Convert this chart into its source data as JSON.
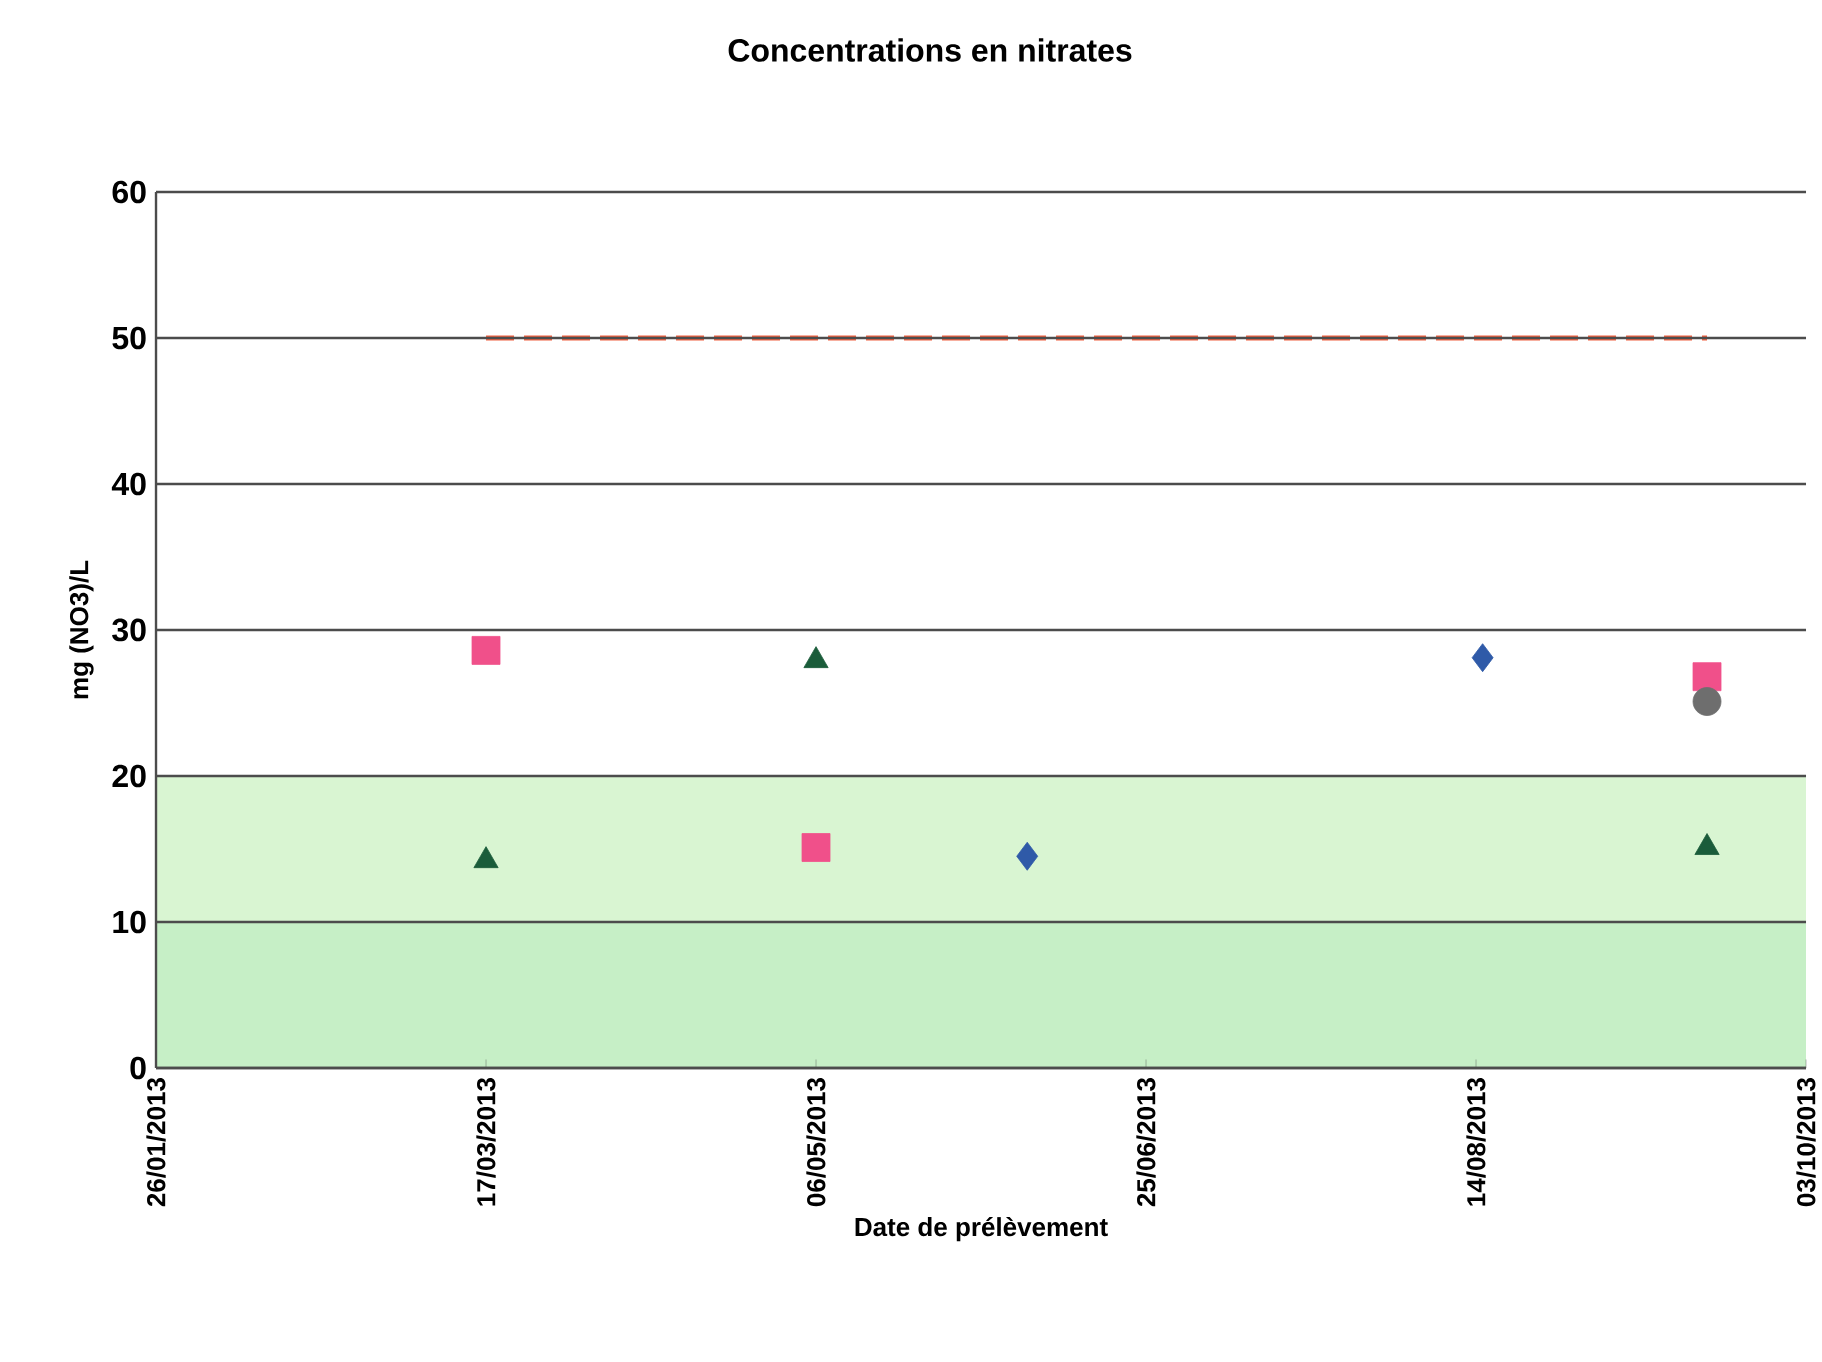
{
  "chart_data": {
    "type": "scatter",
    "title": "Concentrations en nitrates",
    "xlabel": "Date de prélèvement",
    "ylabel": "mg (NO3)/L",
    "xlim": [
      "2013-01-26",
      "2013-10-03"
    ],
    "xticks": [
      {
        "value": "2013-01-26",
        "label": "26/01/2013"
      },
      {
        "value": "2013-03-17",
        "label": "17/03/2013"
      },
      {
        "value": "2013-05-06",
        "label": "06/05/2013"
      },
      {
        "value": "2013-06-25",
        "label": "25/06/2013"
      },
      {
        "value": "2013-08-14",
        "label": "14/08/2013"
      },
      {
        "value": "2013-10-03",
        "label": "03/10/2013"
      }
    ],
    "ylim": [
      0,
      60
    ],
    "yticks": [
      0,
      10,
      20,
      30,
      40,
      50,
      60
    ],
    "grid": "y",
    "bands": [
      {
        "axis": "y",
        "from": 0,
        "to": 10,
        "color": "#c6efc6"
      },
      {
        "axis": "y",
        "from": 10,
        "to": 20,
        "color": "#d9f5d2"
      }
    ],
    "series": [
      {
        "marker": "diamond",
        "color": "#2f5aa8",
        "x": [
          "2013-06-07",
          "2013-08-15"
        ],
        "values": [
          14.5,
          28.1
        ]
      },
      {
        "marker": "square",
        "color": "#f0508a",
        "x": [
          "2013-03-17",
          "2013-05-06",
          "2013-09-18"
        ],
        "values": [
          28.6,
          15.1,
          26.8
        ]
      },
      {
        "marker": "triangle",
        "color": "#1a5c3a",
        "x": [
          "2013-03-17",
          "2013-05-06",
          "2013-09-18"
        ],
        "values": [
          14.2,
          27.9,
          15.1
        ]
      },
      {
        "marker": "circle",
        "color": "#6e6e6e",
        "x": [
          "2013-09-18"
        ],
        "values": [
          25.1
        ]
      },
      {
        "type": "line",
        "marker": "none",
        "line_style": "dashed",
        "color": "#f06040",
        "x": [
          "2013-03-17",
          "2013-09-18"
        ],
        "values": [
          50,
          50
        ]
      }
    ]
  }
}
